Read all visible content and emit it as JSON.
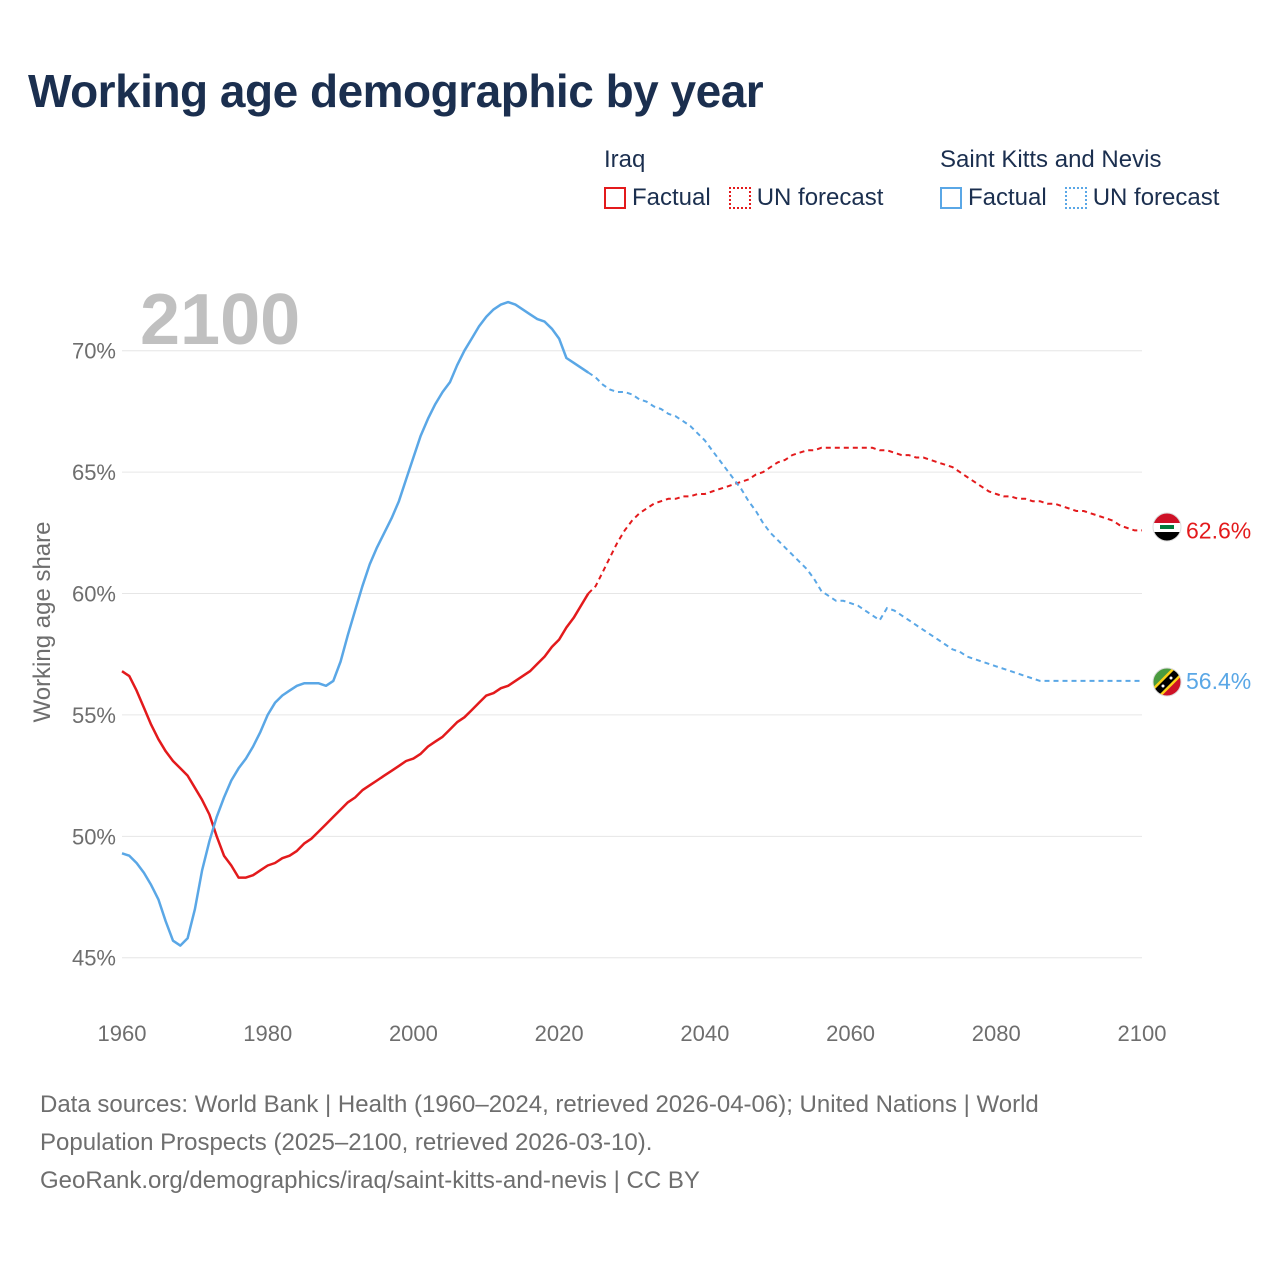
{
  "title": "Working age demographic by year",
  "legend": {
    "groups": [
      {
        "name": "Iraq",
        "color": "#e31a1c",
        "factual_label": "Factual",
        "forecast_label": "UN forecast"
      },
      {
        "name": "Saint Kitts and Nevis",
        "color": "#5aa7e6",
        "factual_label": "Factual",
        "forecast_label": "UN forecast"
      }
    ]
  },
  "chart_data": {
    "type": "line",
    "title": "Working age demographic by year",
    "year_watermark": "2100",
    "xlabel": "",
    "ylabel": "Working age share",
    "xlim": [
      1960,
      2100
    ],
    "ylim": [
      44,
      72.5
    ],
    "x_ticks": [
      {
        "value": 1960,
        "label": "1960"
      },
      {
        "value": 1980,
        "label": "1980"
      },
      {
        "value": 2000,
        "label": "2000"
      },
      {
        "value": 2020,
        "label": "2020"
      },
      {
        "value": 2040,
        "label": "2040"
      },
      {
        "value": 2060,
        "label": "2060"
      },
      {
        "value": 2080,
        "label": "2080"
      },
      {
        "value": 2100,
        "label": "2100"
      }
    ],
    "y_ticks": [
      {
        "value": 45,
        "label": "45%"
      },
      {
        "value": 50,
        "label": "50%"
      },
      {
        "value": 55,
        "label": "55%"
      },
      {
        "value": 60,
        "label": "60%"
      },
      {
        "value": 65,
        "label": "65%"
      },
      {
        "value": 70,
        "label": "70%"
      }
    ],
    "factual_end_year": 2024,
    "series": [
      {
        "name": "Iraq",
        "color": "#e31a1c",
        "end_label": "62.6%",
        "x": [
          1960,
          1961,
          1962,
          1963,
          1964,
          1965,
          1966,
          1967,
          1968,
          1969,
          1970,
          1971,
          1972,
          1973,
          1974,
          1975,
          1976,
          1977,
          1978,
          1979,
          1980,
          1981,
          1982,
          1983,
          1984,
          1985,
          1986,
          1987,
          1988,
          1989,
          1990,
          1991,
          1992,
          1993,
          1994,
          1995,
          1996,
          1997,
          1998,
          1999,
          2000,
          2001,
          2002,
          2003,
          2004,
          2005,
          2006,
          2007,
          2008,
          2009,
          2010,
          2011,
          2012,
          2013,
          2014,
          2015,
          2016,
          2017,
          2018,
          2019,
          2020,
          2021,
          2022,
          2023,
          2024,
          2025,
          2026,
          2027,
          2028,
          2029,
          2030,
          2031,
          2032,
          2033,
          2034,
          2035,
          2036,
          2037,
          2038,
          2039,
          2040,
          2041,
          2042,
          2043,
          2044,
          2045,
          2046,
          2047,
          2048,
          2049,
          2050,
          2051,
          2052,
          2053,
          2054,
          2055,
          2056,
          2057,
          2058,
          2059,
          2060,
          2061,
          2062,
          2063,
          2064,
          2065,
          2066,
          2067,
          2068,
          2069,
          2070,
          2071,
          2072,
          2073,
          2074,
          2075,
          2076,
          2077,
          2078,
          2079,
          2080,
          2081,
          2082,
          2083,
          2084,
          2085,
          2086,
          2087,
          2088,
          2089,
          2090,
          2091,
          2092,
          2093,
          2094,
          2095,
          2096,
          2097,
          2098,
          2099,
          2100
        ],
        "y": [
          56.8,
          56.6,
          56.0,
          55.3,
          54.6,
          54.0,
          53.5,
          53.1,
          52.8,
          52.5,
          52.0,
          51.5,
          50.9,
          50.0,
          49.2,
          48.8,
          48.3,
          48.3,
          48.4,
          48.6,
          48.8,
          48.9,
          49.1,
          49.2,
          49.4,
          49.7,
          49.9,
          50.2,
          50.5,
          50.8,
          51.1,
          51.4,
          51.6,
          51.9,
          52.1,
          52.3,
          52.5,
          52.7,
          52.9,
          53.1,
          53.2,
          53.4,
          53.7,
          53.9,
          54.1,
          54.4,
          54.7,
          54.9,
          55.2,
          55.5,
          55.8,
          55.9,
          56.1,
          56.2,
          56.4,
          56.6,
          56.8,
          57.1,
          57.4,
          57.8,
          58.1,
          58.6,
          59.0,
          59.5,
          60.0,
          60.3,
          60.9,
          61.5,
          62.1,
          62.6,
          63.0,
          63.3,
          63.5,
          63.7,
          63.8,
          63.9,
          63.9,
          64.0,
          64.0,
          64.1,
          64.1,
          64.2,
          64.3,
          64.4,
          64.5,
          64.6,
          64.7,
          64.9,
          65.0,
          65.2,
          65.4,
          65.5,
          65.7,
          65.8,
          65.9,
          65.9,
          66.0,
          66.0,
          66.0,
          66.0,
          66.0,
          66.0,
          66.0,
          66.0,
          65.9,
          65.9,
          65.8,
          65.7,
          65.7,
          65.6,
          65.6,
          65.5,
          65.4,
          65.3,
          65.2,
          65.0,
          64.8,
          64.6,
          64.4,
          64.2,
          64.1,
          64.0,
          64.0,
          63.9,
          63.9,
          63.8,
          63.8,
          63.7,
          63.7,
          63.6,
          63.5,
          63.4,
          63.4,
          63.3,
          63.2,
          63.1,
          63.0,
          62.8,
          62.7,
          62.6,
          62.6
        ]
      },
      {
        "name": "Saint Kitts and Nevis",
        "color": "#5aa7e6",
        "end_label": "56.4%",
        "x": [
          1960,
          1961,
          1962,
          1963,
          1964,
          1965,
          1966,
          1967,
          1968,
          1969,
          1970,
          1971,
          1972,
          1973,
          1974,
          1975,
          1976,
          1977,
          1978,
          1979,
          1980,
          1981,
          1982,
          1983,
          1984,
          1985,
          1986,
          1987,
          1988,
          1989,
          1990,
          1991,
          1992,
          1993,
          1994,
          1995,
          1996,
          1997,
          1998,
          1999,
          2000,
          2001,
          2002,
          2003,
          2004,
          2005,
          2006,
          2007,
          2008,
          2009,
          2010,
          2011,
          2012,
          2013,
          2014,
          2015,
          2016,
          2017,
          2018,
          2019,
          2020,
          2021,
          2022,
          2023,
          2024,
          2025,
          2026,
          2027,
          2028,
          2029,
          2030,
          2031,
          2032,
          2033,
          2034,
          2035,
          2036,
          2037,
          2038,
          2039,
          2040,
          2041,
          2042,
          2043,
          2044,
          2045,
          2046,
          2047,
          2048,
          2049,
          2050,
          2051,
          2052,
          2053,
          2054,
          2055,
          2056,
          2057,
          2058,
          2059,
          2060,
          2061,
          2062,
          2063,
          2064,
          2065,
          2066,
          2067,
          2068,
          2069,
          2070,
          2071,
          2072,
          2073,
          2074,
          2075,
          2076,
          2077,
          2078,
          2079,
          2080,
          2081,
          2082,
          2083,
          2084,
          2085,
          2086,
          2087,
          2088,
          2089,
          2090,
          2091,
          2092,
          2093,
          2094,
          2095,
          2096,
          2097,
          2098,
          2099,
          2100
        ],
        "y": [
          49.3,
          49.2,
          48.9,
          48.5,
          48.0,
          47.4,
          46.5,
          45.7,
          45.5,
          45.8,
          47.0,
          48.6,
          49.8,
          50.8,
          51.6,
          52.3,
          52.8,
          53.2,
          53.7,
          54.3,
          55.0,
          55.5,
          55.8,
          56.0,
          56.2,
          56.3,
          56.3,
          56.3,
          56.2,
          56.4,
          57.2,
          58.3,
          59.3,
          60.3,
          61.2,
          61.9,
          62.5,
          63.1,
          63.8,
          64.7,
          65.6,
          66.5,
          67.2,
          67.8,
          68.3,
          68.7,
          69.4,
          70.0,
          70.5,
          71.0,
          71.4,
          71.7,
          71.9,
          72.0,
          71.9,
          71.7,
          71.5,
          71.3,
          71.2,
          70.9,
          70.5,
          69.7,
          69.5,
          69.3,
          69.1,
          68.9,
          68.6,
          68.4,
          68.3,
          68.3,
          68.2,
          68.0,
          67.9,
          67.7,
          67.6,
          67.4,
          67.3,
          67.1,
          66.9,
          66.6,
          66.3,
          65.9,
          65.5,
          65.1,
          64.7,
          64.3,
          63.8,
          63.4,
          62.9,
          62.5,
          62.2,
          61.9,
          61.6,
          61.3,
          61.0,
          60.6,
          60.1,
          59.9,
          59.7,
          59.7,
          59.6,
          59.5,
          59.3,
          59.1,
          58.9,
          59.4,
          59.3,
          59.1,
          58.9,
          58.7,
          58.5,
          58.3,
          58.1,
          57.9,
          57.7,
          57.6,
          57.4,
          57.3,
          57.2,
          57.1,
          57.0,
          56.9,
          56.8,
          56.7,
          56.6,
          56.5,
          56.4,
          56.4,
          56.4,
          56.4,
          56.4,
          56.4,
          56.4,
          56.4,
          56.4,
          56.4,
          56.4,
          56.4,
          56.4,
          56.4,
          56.4
        ]
      }
    ]
  },
  "footer": {
    "line1": "Data sources: World Bank | Health (1960–2024, retrieved 2026-04-06); United Nations | World",
    "line2": "Population Prospects (2025–2100, retrieved 2026-03-10).",
    "line3": "GeoRank.org/demographics/iraq/saint-kitts-and-nevis | CC BY"
  }
}
